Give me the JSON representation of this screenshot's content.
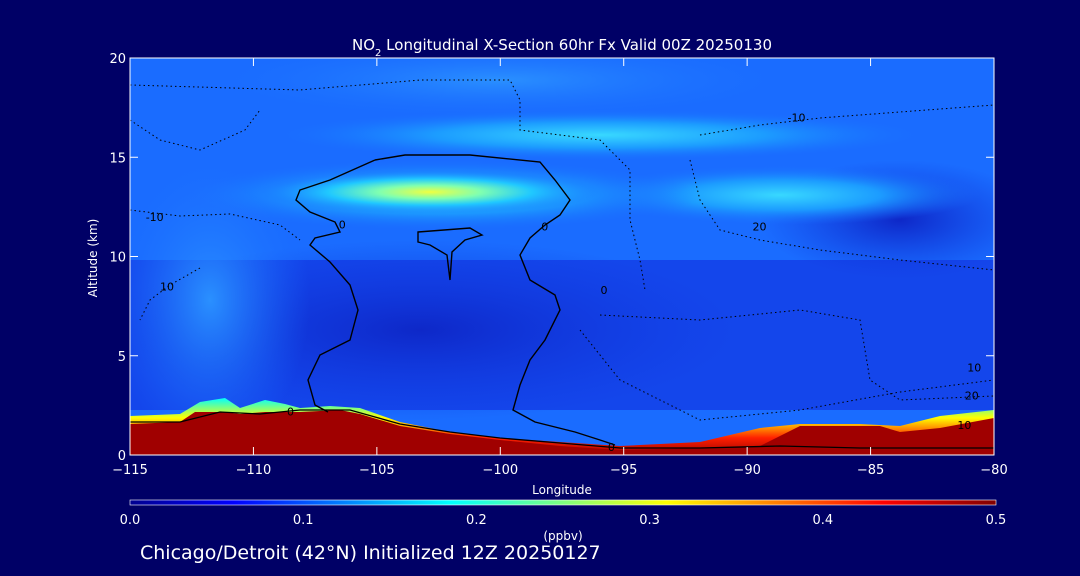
{
  "chart_data": {
    "type": "heatmap",
    "title_parts": [
      "NO",
      "2",
      " Longitudinal X-Section 60hr  Fx Valid 00Z 20250130"
    ],
    "xlabel": "Longitude",
    "ylabel": "Altitude (km)",
    "xlim": [
      -115,
      -80
    ],
    "ylim": [
      0,
      20
    ],
    "x_ticks": [
      -115,
      -110,
      -105,
      -100,
      -95,
      -90,
      -85,
      -80
    ],
    "x_tick_labels": [
      "−115",
      "−110",
      "−105",
      "−100",
      "−95",
      "−90",
      "−85",
      "−80"
    ],
    "y_ticks": [
      0,
      5,
      10,
      15,
      20
    ],
    "y_tick_labels": [
      "0",
      "5",
      "10",
      "15",
      "20"
    ],
    "colorbar": {
      "label": "(ppbv)",
      "range": [
        0.0,
        0.5
      ],
      "ticks": [
        0.0,
        0.1,
        0.2,
        0.3,
        0.4,
        0.5
      ],
      "tick_labels": [
        "0.0",
        "0.1",
        "0.2",
        "0.3",
        "0.4",
        "0.5"
      ]
    },
    "fields": {
      "NO2_ppbv_background": 0.04,
      "plume": {
        "lon_range": [
          -108,
          -97
        ],
        "altitude_km": 13,
        "peak_ppbv": 0.25
      },
      "upper_layer": {
        "lon_range": [
          -107,
          -89
        ],
        "altitude_km": 16,
        "peak_ppbv": 0.15
      },
      "boundary_layer": [
        {
          "lon": -115,
          "top_km": 1.8,
          "ppbv": 0.3
        },
        {
          "lon": -112,
          "top_km": 2.8,
          "ppbv": 0.5
        },
        {
          "lon": -106,
          "top_km": 2.2,
          "ppbv": 0.45
        },
        {
          "lon": -100,
          "top_km": 1.0,
          "ppbv": 0.45
        },
        {
          "lon": -95,
          "top_km": 0.6,
          "ppbv": 0.4
        },
        {
          "lon": -88,
          "top_km": 1.4,
          "ppbv": 0.5
        },
        {
          "lon": -80,
          "top_km": 2.0,
          "ppbv": 0.5
        }
      ]
    },
    "contour_labels": [
      {
        "text": "-10",
        "lon": -88,
        "alt": 17
      },
      {
        "text": "-10",
        "lon": -114,
        "alt": 12
      },
      {
        "text": "0",
        "lon": -106.4,
        "alt": 11.6
      },
      {
        "text": "0",
        "lon": -98.2,
        "alt": 11.5
      },
      {
        "text": "20",
        "lon": -89.5,
        "alt": 11.5
      },
      {
        "text": "10",
        "lon": -113.5,
        "alt": 8.5
      },
      {
        "text": "0",
        "lon": -95.8,
        "alt": 8.3
      },
      {
        "text": "0",
        "lon": -108.5,
        "alt": 2.2
      },
      {
        "text": "10",
        "lon": -80.8,
        "alt": 4.4
      },
      {
        "text": "20",
        "lon": -80.9,
        "alt": 3.0
      },
      {
        "text": "10",
        "lon": -81.2,
        "alt": 1.5
      },
      {
        "text": "0",
        "lon": -95.5,
        "alt": 0.4
      }
    ]
  },
  "footer": "Chicago/Detroit (42°N) Initialized 12Z 20250127"
}
